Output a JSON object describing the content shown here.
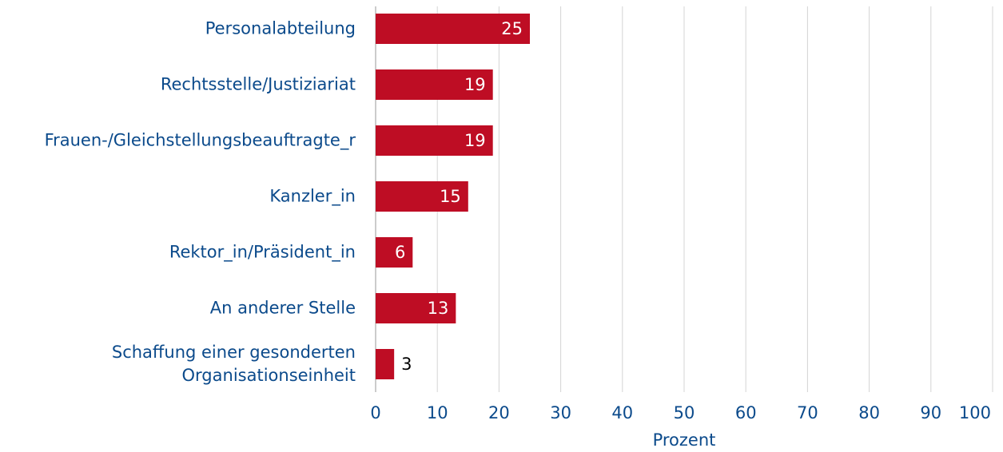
{
  "chart_data": {
    "type": "hbar",
    "categories": [
      "Personalabteilung",
      "Rechtsstelle/Justiziariat",
      "Frauen-/Gleichstellungsbeauftragte_r",
      "Kanzler_in",
      "Rektor_in/Präsident_in",
      "An anderer Stelle",
      "Schaffung einer gesonderten Organisationseinheit"
    ],
    "values": [
      25,
      19,
      19,
      15,
      6,
      13,
      3
    ],
    "color": "#be0d24",
    "xlabel": "Prozent",
    "xlim": [
      0,
      100
    ],
    "xticks": [
      0,
      10,
      20,
      30,
      40,
      50,
      60,
      70,
      80,
      90,
      100
    ],
    "grid": true
  }
}
